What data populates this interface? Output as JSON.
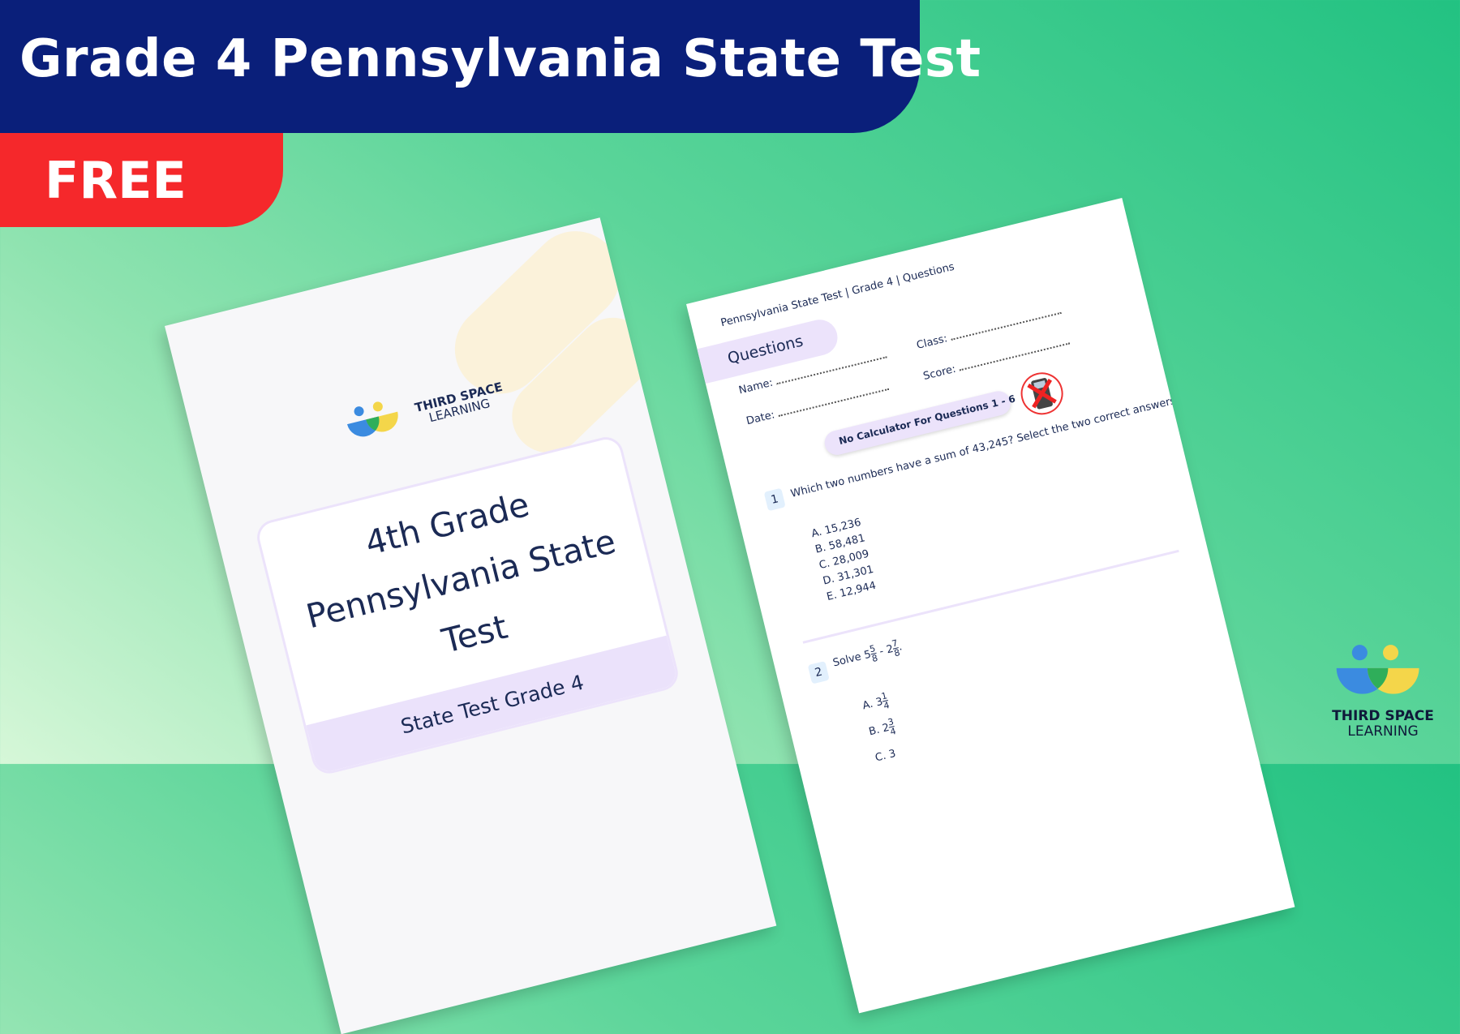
{
  "banner": {
    "title": "Grade 4 Pennsylvania State Test",
    "badge": "FREE"
  },
  "colors": {
    "title_bar": "#0a1f7a",
    "badge": "#f5282b",
    "accent_lavender": "#ebe2fb",
    "logo_blue": "#3b8be0",
    "logo_yellow": "#f4d64a",
    "logo_green": "#2fae5a"
  },
  "cover": {
    "logo": {
      "line1": "THIRD SPACE",
      "line2": "LEARNING"
    },
    "title_lines": [
      "4th Grade",
      "Pennsylvania State",
      "Test"
    ],
    "footer": "State Test Grade 4"
  },
  "sheet": {
    "header": "Pennsylvania State Test | Grade 4 | Questions",
    "section": "Questions",
    "fields": {
      "name": "Name:",
      "class": "Class:",
      "date": "Date:",
      "score": "Score:"
    },
    "notice": "No Calculator For Questions 1 - 6",
    "notice_icon": "no-calculator-icon",
    "questions": [
      {
        "number": "1",
        "text": "Which two numbers have a sum of 43,245? Select the two correct answers.",
        "options": [
          "A. 15,236",
          "B. 58,481",
          "C. 28,009",
          "D. 31,301",
          "E. 12,944"
        ]
      },
      {
        "number": "2",
        "text": "Solve",
        "expr": {
          "w1": "5",
          "n1": "5",
          "d1": "8",
          "op": "-",
          "w2": "2",
          "n2": "7",
          "d2": "8"
        },
        "options": [
          {
            "label": "A.",
            "w": "3",
            "n": "1",
            "d": "4"
          },
          {
            "label": "B.",
            "w": "2",
            "n": "3",
            "d": "4"
          },
          {
            "label": "C.",
            "w": "3"
          }
        ]
      }
    ]
  },
  "brand": {
    "line1": "THIRD SPACE",
    "line2": "LEARNING"
  }
}
